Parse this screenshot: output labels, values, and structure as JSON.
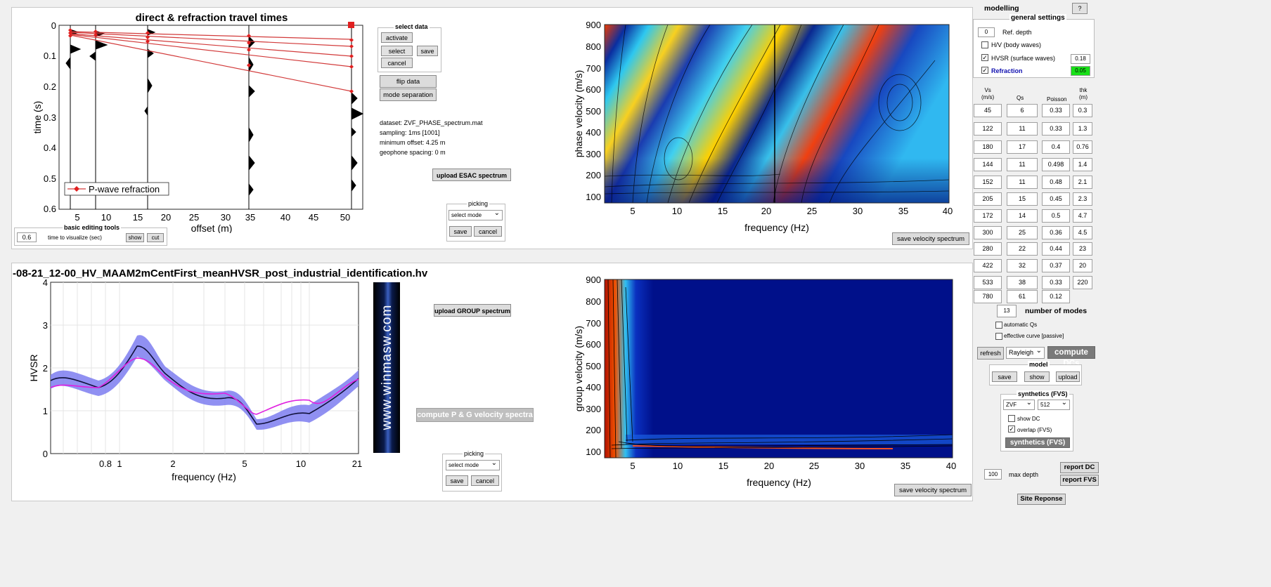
{
  "top_left": {
    "title": "direct & refraction travel times",
    "xlabel": "offset (m)",
    "ylabel": "time (s)",
    "xticks": [
      "5",
      "10",
      "15",
      "20",
      "25",
      "30",
      "35",
      "40",
      "45",
      "50"
    ],
    "yticks": [
      "0",
      "0.1",
      "0.2",
      "0.3",
      "0.4",
      "0.5",
      "0.6"
    ],
    "legend": "P-wave refraction"
  },
  "editing": {
    "title": "basic editing tools",
    "time_value": "0.6",
    "time_label": "time to visualize (sec)",
    "show": "show",
    "cut": "cut"
  },
  "select_data": {
    "title": "select data",
    "activate": "activate",
    "select": "select",
    "save": "save",
    "cancel": "cancel"
  },
  "flip_data": "flip data",
  "mode_separation": "mode separation",
  "dataset_info": {
    "line1": "dataset: ZVF_PHASE_spectrum.mat",
    "line2": "sampling: 1ms [1001]",
    "line3": "minimum offset: 4.25 m",
    "line4": "geophone spacing: 0 m"
  },
  "upload_esac": "upload ESAC spectrum",
  "picking_top": {
    "title": "picking",
    "mode": "select mode",
    "save": "save",
    "cancel": "cancel"
  },
  "phase_plot": {
    "xlabel": "frequency (Hz)",
    "ylabel": "phase velocity (m/s)",
    "xticks": [
      "5",
      "10",
      "15",
      "20",
      "25",
      "30",
      "35",
      "40"
    ],
    "yticks": [
      "100",
      "200",
      "300",
      "400",
      "500",
      "600",
      "700",
      "800",
      "900"
    ]
  },
  "save_velocity_top": "save velocity spectrum",
  "hv_file": "-08-21_12-00_HV_MAAM2mCentFirst_meanHVSR_post_industrial_identification.hv",
  "hv_plot": {
    "xlabel": "frequency (Hz)",
    "ylabel": "HVSR",
    "xticks": [
      "0.8",
      "1",
      "2",
      "5",
      "10",
      "21"
    ],
    "yticks": [
      "0",
      "1",
      "2",
      "3",
      "4"
    ]
  },
  "watermark": "www.winmasw.com",
  "upload_group": "upload GROUP spectrum",
  "compute_pg": "compute P & G velocity spectra",
  "picking_bottom": {
    "title": "picking",
    "mode": "select mode",
    "save": "save",
    "cancel": "cancel"
  },
  "group_plot": {
    "xlabel": "frequency (Hz)",
    "ylabel": "group velocity (m/s)",
    "xticks": [
      "5",
      "10",
      "15",
      "20",
      "25",
      "30",
      "35",
      "40"
    ],
    "yticks": [
      "100",
      "200",
      "300",
      "400",
      "500",
      "600",
      "700",
      "800",
      "900"
    ]
  },
  "save_velocity_bottom": "save velocity spectrum",
  "modelling": {
    "title": "modelling",
    "help": "?",
    "general_settings": "general settings",
    "ref_depth_value": "0",
    "ref_depth_label": "Ref. depth",
    "hv_body": "H/V (body waves)",
    "hvsr_surface": "HVSR (surface waves)",
    "hvsr_weight": "0.18",
    "refraction": "Refraction",
    "refraction_weight": "0.05"
  },
  "model_table": {
    "headers": [
      "Vs\n(m/s)",
      "Qs",
      "Poisson",
      "thk\n(m)"
    ],
    "vs": [
      "45",
      "122",
      "180",
      "144",
      "152",
      "205",
      "172",
      "300",
      "280",
      "422",
      "533",
      "780"
    ],
    "qs": [
      "6",
      "11",
      "17",
      "11",
      "11",
      "15",
      "14",
      "25",
      "22",
      "32",
      "38",
      "61"
    ],
    "poisson": [
      "0.33",
      "0.33",
      "0.4",
      "0.498",
      "0.48",
      "0.45",
      "0.5",
      "0.36",
      "0.44",
      "0.37",
      "0.33",
      "0.12"
    ],
    "thk": [
      "0.3",
      "1.3",
      "0.76",
      "1.4",
      "2.1",
      "2.3",
      "4.7",
      "4.5",
      "23",
      "20",
      "220"
    ]
  },
  "modes": {
    "value": "13",
    "label": "number of modes"
  },
  "automatic_qs": "automatic Qs",
  "effective_curve": "effective curve [passive]",
  "refresh": "refresh",
  "wave_type": "Rayleigh",
  "compute_dcs": "compute DCs",
  "model_group": {
    "title": "model",
    "save": "save",
    "show": "show",
    "upload": "upload"
  },
  "synthetics": {
    "title": "synthetics (FVS)",
    "component": "ZVF",
    "samples": "512",
    "show_dc": "show DC",
    "overlap": "overlap (FVS)",
    "button": "synthetics (FVS)"
  },
  "max_depth": {
    "value": "100",
    "label": "max depth"
  },
  "report_dc": "report DC",
  "report_fvs": "report FVS",
  "site_response": "Site Reponse"
}
